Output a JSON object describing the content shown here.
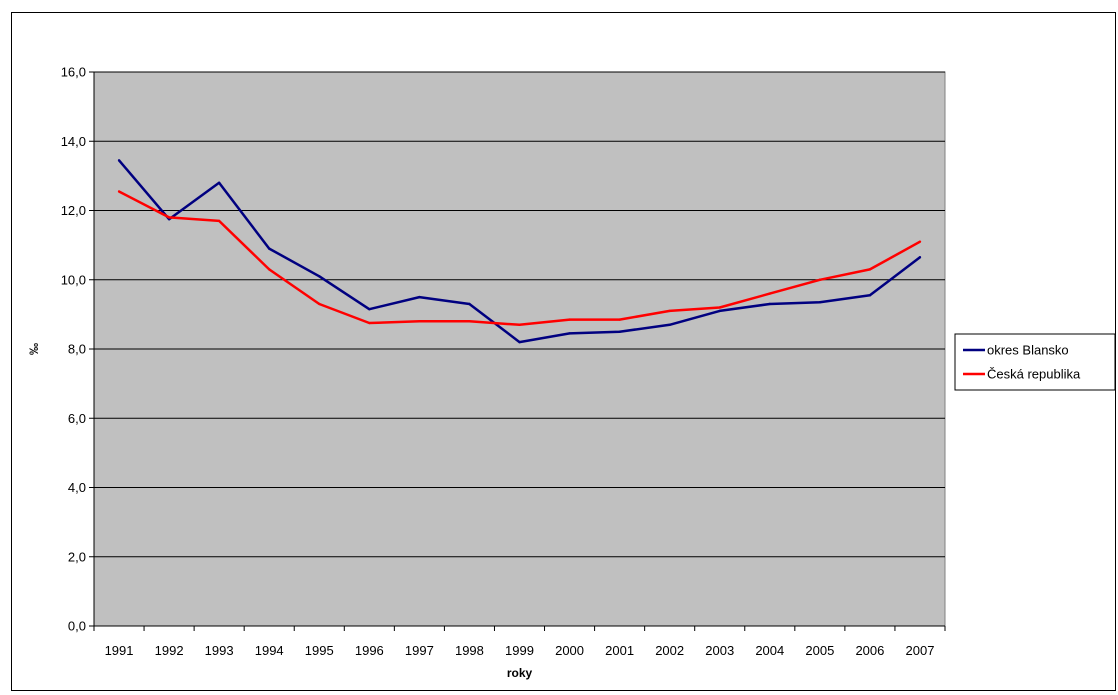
{
  "chart_data": {
    "type": "line",
    "title": "",
    "xlabel": "roky",
    "ylabel": "‰",
    "ylim": [
      0,
      16
    ],
    "yticks": [
      "0,0",
      "2,0",
      "4,0",
      "6,0",
      "8,0",
      "10,0",
      "12,0",
      "14,0",
      "16,0"
    ],
    "grid": true,
    "legend_position": "right",
    "plot_background": "#C0C0C0",
    "categories": [
      "1991",
      "1992",
      "1993",
      "1994",
      "1995",
      "1996",
      "1997",
      "1998",
      "1999",
      "2000",
      "2001",
      "2002",
      "2003",
      "2004",
      "2005",
      "2006",
      "2007"
    ],
    "series": [
      {
        "name": "okres Blansko",
        "color": "#000080",
        "values": [
          13.45,
          11.75,
          12.8,
          10.9,
          10.1,
          9.15,
          9.5,
          9.3,
          8.2,
          8.45,
          8.5,
          8.7,
          9.1,
          9.3,
          9.35,
          9.55,
          10.65
        ]
      },
      {
        "name": "Česká republika",
        "color": "#FF0000",
        "values": [
          12.55,
          11.8,
          11.7,
          10.3,
          9.3,
          8.75,
          8.8,
          8.8,
          8.7,
          8.85,
          8.85,
          9.1,
          9.2,
          9.6,
          10.0,
          10.3,
          11.1
        ]
      }
    ]
  }
}
